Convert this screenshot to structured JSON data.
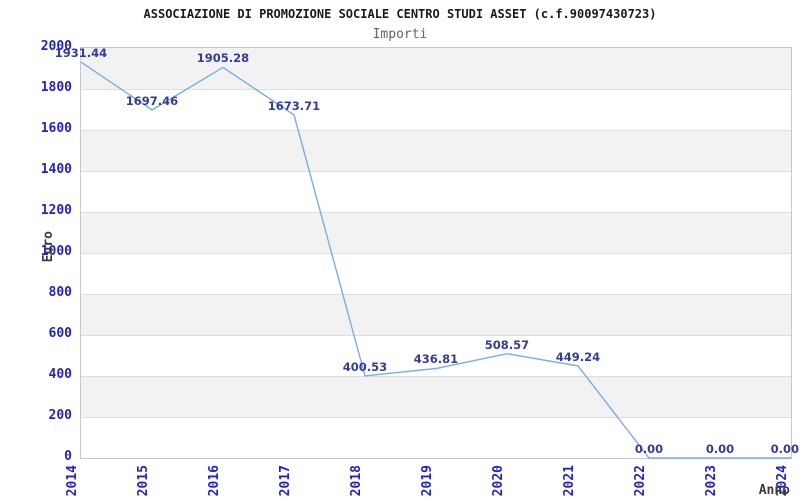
{
  "chart_data": {
    "type": "line",
    "title": "ASSOCIAZIONE DI PROMOZIONE SOCIALE CENTRO STUDI ASSET (c.f.90097430723)",
    "subtitle": "Importi",
    "xlabel": "Anno",
    "ylabel": "Euro",
    "categories": [
      "2014",
      "2015",
      "2016",
      "2017",
      "2018",
      "2019",
      "2020",
      "2021",
      "2022",
      "2023",
      "2024"
    ],
    "series": [
      {
        "name": "Importi",
        "values": [
          1931.44,
          1697.46,
          1905.28,
          1673.71,
          400.53,
          436.81,
          508.57,
          449.24,
          0,
          0,
          0
        ],
        "point_labels": [
          "1931.44",
          "1697.46",
          "1905.28",
          "1673.71",
          "400.53",
          "436.81",
          "508.57",
          "449.24",
          "0.00",
          "0.00",
          "0.00"
        ]
      }
    ],
    "ylim": [
      0,
      2000
    ],
    "ytick_step": 200,
    "yticks": [
      0,
      200,
      400,
      600,
      800,
      1000,
      1200,
      1400,
      1600,
      1800,
      2000
    ],
    "grid": "horizontal gridlines every 200 with alternating shaded bands",
    "legend_position": "none",
    "colors": {
      "line": "#7aace6",
      "point_label": "#333d99",
      "tick_label": "#2222cc",
      "band_fill": "#f2f2f2",
      "band_alt_fill": "#ffffff",
      "gridline": "#dedede",
      "plot_border": "#c9c9c9",
      "title_text": "#1a1a1a",
      "subtitle_text": "#666666",
      "axis_name_text": "#3a3a3a",
      "background": "#ffffff"
    }
  }
}
